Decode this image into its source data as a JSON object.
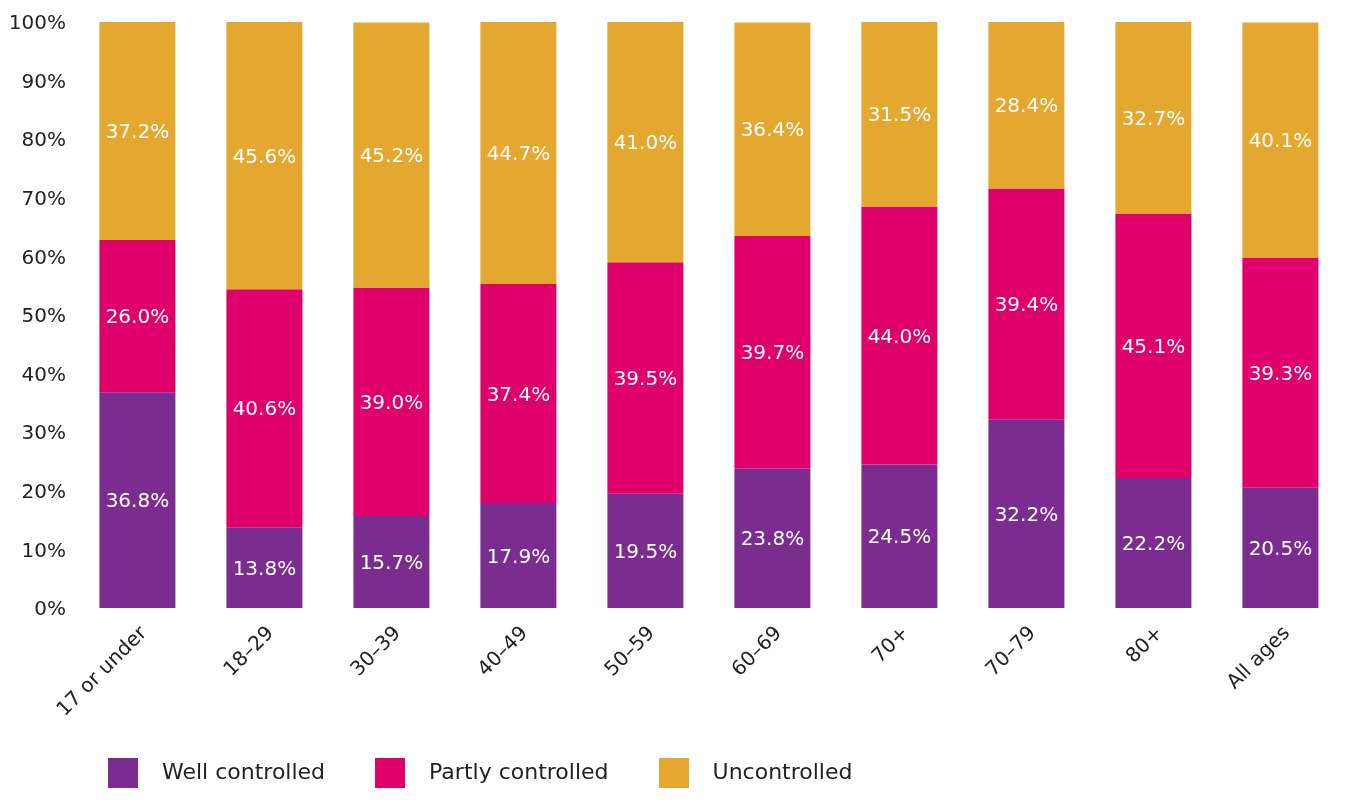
{
  "chart_data": {
    "type": "bar",
    "stacked": true,
    "categories": [
      "17 or under",
      "18–29",
      "30–39",
      "40–49",
      "50–59",
      "60–69",
      "70+",
      "70–79",
      "80+",
      "All ages"
    ],
    "series": [
      {
        "name": "Well controlled",
        "color": "#7b2d8f",
        "values": [
          36.8,
          13.8,
          15.7,
          17.9,
          19.5,
          23.8,
          24.5,
          32.2,
          22.2,
          20.5
        ],
        "value_labels": [
          "36.8%",
          "13.8%",
          "15.7%",
          "17.9%",
          "19.5%",
          "23.8%",
          "24.5%",
          "32.2%",
          "22.2%",
          "20.5%"
        ]
      },
      {
        "name": "Partly controlled",
        "color": "#df006b",
        "values": [
          26.0,
          40.6,
          39.0,
          37.4,
          39.5,
          39.7,
          44.0,
          39.4,
          45.1,
          39.3
        ],
        "value_labels": [
          "26.0%",
          "40.6%",
          "39.0%",
          "37.4%",
          "39.5%",
          "39.7%",
          "44.0%",
          "39.4%",
          "45.1%",
          "39.3%"
        ]
      },
      {
        "name": "Uncontrolled",
        "color": "#e4a830",
        "values": [
          37.2,
          45.6,
          45.2,
          44.7,
          41.0,
          36.4,
          31.5,
          28.4,
          32.7,
          40.1
        ],
        "value_labels": [
          "37.2%",
          "45.6%",
          "45.2%",
          "44.7%",
          "41.0%",
          "36.4%",
          "31.5%",
          "28.4%",
          "32.7%",
          "40.1%"
        ]
      }
    ],
    "ylim": [
      0,
      100
    ],
    "yticks": [
      {
        "value": 0,
        "label": "0%"
      },
      {
        "value": 10,
        "label": "10%"
      },
      {
        "value": 20,
        "label": "20%"
      },
      {
        "value": 30,
        "label": "30%"
      },
      {
        "value": 40,
        "label": "40%"
      },
      {
        "value": 50,
        "label": "50%"
      },
      {
        "value": 60,
        "label": "60%"
      },
      {
        "value": 70,
        "label": "70%"
      },
      {
        "value": 80,
        "label": "80%"
      },
      {
        "value": 90,
        "label": "90%"
      },
      {
        "value": 100,
        "label": "100%"
      }
    ],
    "grid": false,
    "legend": "bottom left"
  }
}
